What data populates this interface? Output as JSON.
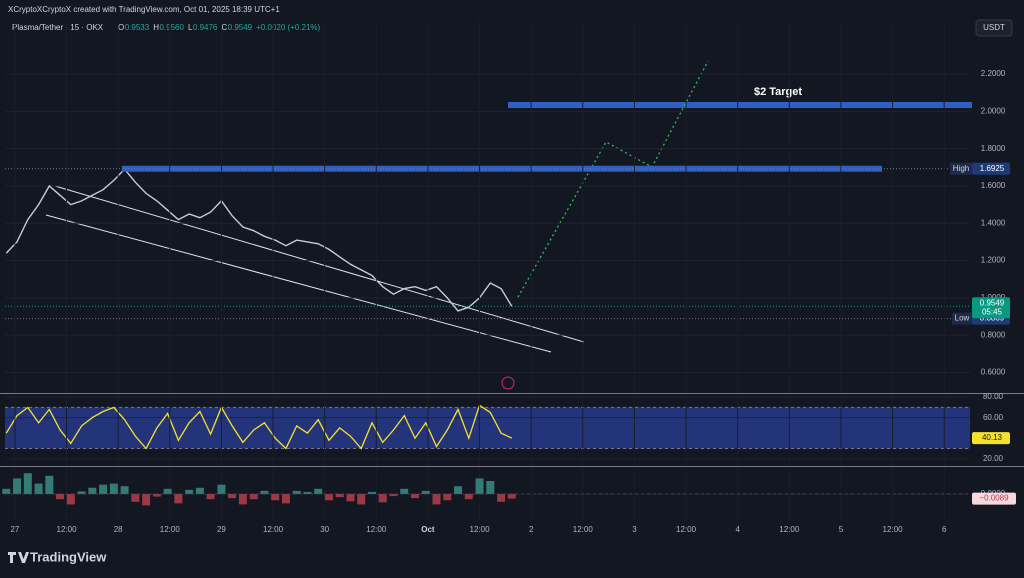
{
  "chart_data": [
    {
      "type": "line",
      "caption": "XCryptoXCryptoX created with TradingView.com, Oct 01, 2025 18:39 UTC+1",
      "title": "Plasma/Tether · 15 · OKX",
      "ohlc": [
        "O",
        "0.9533",
        "H",
        "0.9560",
        "L",
        "0.9476",
        "C",
        "0.9549",
        "+0.0020 (+0.21%)"
      ],
      "currency": "USDT",
      "annotation": "$2 Target",
      "brand": "TradingView",
      "countdown": "05:45",
      "high": {
        "label": "High",
        "value": 1.6925
      },
      "low": {
        "label": "Low",
        "value": 0.8889
      },
      "zone_color": "#2f5fc4",
      "x": [
        -2,
        0.5,
        3,
        5.5,
        8,
        10.5,
        13,
        15.5,
        18,
        20.5,
        23,
        25.5,
        28,
        30.5,
        33,
        35.5,
        38,
        40.5,
        43,
        45.5,
        48,
        50.5,
        53,
        55.5,
        58,
        60.5,
        63,
        65.5,
        68,
        70.5,
        73,
        75.5,
        78,
        80.5,
        83,
        85.5,
        88,
        90.5,
        93,
        95.5,
        98,
        100.5,
        103,
        105.5,
        108,
        110.5,
        113,
        115.5
      ],
      "series": [
        {
          "name": "Plasma/Tether",
          "color": "#c9ccd4",
          "values": [
            1.24,
            1.3,
            1.42,
            1.5,
            1.6,
            1.55,
            1.5,
            1.52,
            1.55,
            1.58,
            1.63,
            1.69,
            1.62,
            1.56,
            1.52,
            1.47,
            1.42,
            1.45,
            1.43,
            1.46,
            1.52,
            1.44,
            1.38,
            1.36,
            1.33,
            1.31,
            1.28,
            1.31,
            1.3,
            1.29,
            1.26,
            1.22,
            1.18,
            1.15,
            1.12,
            1.06,
            1.02,
            1.05,
            1.06,
            1.04,
            1.06,
            1.0,
            0.93,
            0.95,
            1.0,
            1.08,
            1.05,
            0.9549
          ]
        }
      ],
      "last_color": "#089981",
      "xlim": [
        -2.3,
        222
      ],
      "ylim": [
        0.49,
        2.49
      ],
      "yticks": [
        {
          "value": 0.6,
          "label": "0.6000"
        },
        {
          "value": 0.8,
          "label": "0.8000"
        },
        {
          "value": 1.0,
          "label": "1.0000"
        },
        {
          "value": 1.2,
          "label": "1.2000"
        },
        {
          "value": 1.4,
          "label": "1.4000"
        },
        {
          "value": 1.6,
          "label": "1.6000"
        },
        {
          "value": 1.8,
          "label": "1.8000"
        },
        {
          "value": 2.0,
          "label": "2.0000"
        },
        {
          "value": 2.2,
          "label": "2.2000"
        }
      ],
      "grid": true
    },
    {
      "type": "line",
      "x": [
        -2,
        0.5,
        3,
        5.5,
        8,
        10.5,
        13,
        15.5,
        18,
        20.5,
        23,
        25.5,
        28,
        30.5,
        33,
        35.5,
        38,
        40.5,
        43,
        45.5,
        48,
        50.5,
        53,
        55.5,
        58,
        60.5,
        63,
        65.5,
        68,
        70.5,
        73,
        75.5,
        78,
        80.5,
        83,
        85.5,
        88,
        90.5,
        93,
        95.5,
        98,
        100.5,
        103,
        105.5,
        108,
        110.5,
        113,
        115.5
      ],
      "series": [
        {
          "name": "RSI",
          "color": "#f5e12c",
          "values": [
            45,
            62,
            70,
            55,
            68,
            48,
            35,
            52,
            60,
            66,
            70,
            58,
            42,
            30,
            50,
            64,
            38,
            55,
            66,
            44,
            70,
            52,
            36,
            48,
            55,
            40,
            30,
            52,
            45,
            58,
            38,
            50,
            42,
            30,
            55,
            36,
            48,
            62,
            40,
            55,
            32,
            48,
            68,
            40,
            72,
            65,
            45,
            40.13
          ]
        }
      ],
      "band": [
        30,
        70
      ],
      "band_color": "#2a3f9a",
      "xlim": [
        -2.3,
        222
      ],
      "ylim": [
        14,
        82
      ],
      "yticks": [
        {
          "value": 20,
          "label": "20.00"
        },
        {
          "value": 60,
          "label": "60.00"
        },
        {
          "value": 80,
          "label": "80.00"
        }
      ],
      "grid": true
    },
    {
      "type": "bar",
      "x": [
        -2,
        0.5,
        3,
        5.5,
        8,
        10.5,
        13,
        15.5,
        18,
        20.5,
        23,
        25.5,
        28,
        30.5,
        33,
        35.5,
        38,
        40.5,
        43,
        45.5,
        48,
        50.5,
        53,
        55.5,
        58,
        60.5,
        63,
        65.5,
        68,
        70.5,
        73,
        75.5,
        78,
        80.5,
        83,
        85.5,
        88,
        90.5,
        93,
        95.5,
        98,
        100.5,
        103,
        105.5,
        108,
        110.5,
        113,
        115.5
      ],
      "series": [
        {
          "name": "Histogram",
          "color": "#3b8c84",
          "negative_color": "#b5404a",
          "values": [
            0.01,
            0.03,
            0.04,
            0.02,
            0.035,
            -0.01,
            -0.02,
            0.005,
            0.012,
            0.018,
            0.02,
            0.015,
            -0.015,
            -0.022,
            -0.005,
            0.01,
            -0.018,
            0.008,
            0.012,
            -0.01,
            0.018,
            -0.008,
            -0.02,
            -0.01,
            0.006,
            -0.012,
            -0.018,
            0.006,
            0.004,
            0.01,
            -0.012,
            -0.006,
            -0.014,
            -0.02,
            0.004,
            -0.016,
            -0.004,
            0.01,
            -0.008,
            0.006,
            -0.02,
            -0.012,
            0.015,
            -0.01,
            0.03,
            0.025,
            -0.015,
            -0.0089
          ]
        }
      ],
      "last": {
        "value": -0.0089,
        "label": "−0.0089"
      },
      "xlim": [
        -2.3,
        222
      ],
      "ylim": [
        -0.05,
        0.05
      ],
      "yticks": [
        {
          "value": 0,
          "label": "0.0000"
        }
      ],
      "xticks": [
        {
          "value": 0,
          "label": "27"
        },
        {
          "value": 12,
          "label": "12:00"
        },
        {
          "value": 24,
          "label": "28"
        },
        {
          "value": 36,
          "label": "12:00"
        },
        {
          "value": 48,
          "label": "29"
        },
        {
          "value": 60,
          "label": "12:00"
        },
        {
          "value": 72,
          "label": "30"
        },
        {
          "value": 84,
          "label": "12:00"
        },
        {
          "value": 96,
          "label": "Oct"
        },
        {
          "value": 108,
          "label": "12:00"
        },
        {
          "value": 120,
          "label": "2"
        },
        {
          "value": 132,
          "label": "12:00"
        },
        {
          "value": 144,
          "label": "3"
        },
        {
          "value": 156,
          "label": "12:00"
        },
        {
          "value": 168,
          "label": "4"
        },
        {
          "value": 180,
          "label": "12:00"
        },
        {
          "value": 192,
          "label": "5"
        },
        {
          "value": 204,
          "label": "12:00"
        },
        {
          "value": 216,
          "label": "6"
        }
      ],
      "grid": true
    }
  ]
}
